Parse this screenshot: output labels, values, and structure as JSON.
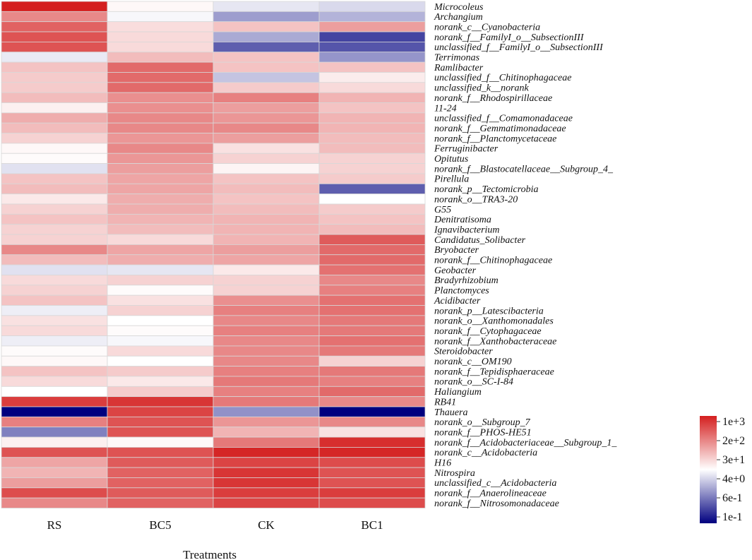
{
  "chart_data": {
    "type": "heatmap",
    "xlabel": "Treatments",
    "columns": [
      "RS",
      "BC5",
      "CK",
      "BC1"
    ],
    "rows": [
      {
        "label": "Microcoleus",
        "values": [
          3.0,
          0.1,
          -0.3,
          -0.45
        ]
      },
      {
        "label": "Archangium",
        "values": [
          1.6,
          -0.1,
          -1.15,
          -0.9
        ]
      },
      {
        "label": "norank_c__Cyanobacteria",
        "values": [
          2.1,
          0.45,
          0.8,
          1.3
        ]
      },
      {
        "label": "norank_f__FamilyI_o__SubsectionIII",
        "values": [
          2.3,
          0.5,
          -1.0,
          -2.2
        ]
      },
      {
        "label": "unclassified_f__FamilyI_o__SubsectionIII",
        "values": [
          2.3,
          0.5,
          -1.9,
          -2.0
        ]
      },
      {
        "label": "Terrimonas",
        "values": [
          -0.25,
          0.9,
          0.8,
          -1.25
        ]
      },
      {
        "label": "Ramlibacter",
        "values": [
          0.8,
          2.0,
          0.8,
          0.8
        ]
      },
      {
        "label": "unclassified_f__Chitinophagaceae",
        "values": [
          0.7,
          2.0,
          -0.7,
          0.25
        ]
      },
      {
        "label": "unclassified_k__norank",
        "values": [
          0.7,
          2.0,
          0.7,
          0.5
        ]
      },
      {
        "label": "norank_f__Rhodospirillaceae",
        "values": [
          0.9,
          1.5,
          1.7,
          1.0
        ]
      },
      {
        "label": "11-24",
        "values": [
          0.2,
          1.5,
          1.3,
          0.8
        ]
      },
      {
        "label": "unclassified_f__Comamonadaceae",
        "values": [
          1.1,
          1.6,
          1.4,
          1.0
        ]
      },
      {
        "label": "norank_f__Gemmatimonadaceae",
        "values": [
          0.9,
          1.6,
          1.6,
          1.0
        ]
      },
      {
        "label": "norank_f__Planctomycetaceae",
        "values": [
          0.6,
          1.4,
          1.3,
          0.9
        ]
      },
      {
        "label": "Ferruginibacter",
        "values": [
          0.1,
          1.6,
          0.4,
          0.9
        ]
      },
      {
        "label": "Opitutus",
        "values": [
          0.05,
          1.4,
          0.6,
          0.6
        ]
      },
      {
        "label": "norank_f__Blastocatellaceae__Subgroup_4_",
        "values": [
          -0.35,
          1.3,
          0.15,
          0.6
        ]
      },
      {
        "label": "Pirellula",
        "values": [
          0.8,
          1.2,
          0.8,
          0.7
        ]
      },
      {
        "label": "norank_p__Tectomicrobia",
        "values": [
          0.9,
          1.2,
          0.9,
          -1.9
        ]
      },
      {
        "label": "norank_o__TRA3-20",
        "values": [
          0.3,
          1.1,
          0.8,
          0.0
        ]
      },
      {
        "label": "G55",
        "values": [
          0.6,
          1.1,
          0.9,
          0.7
        ]
      },
      {
        "label": "Denitratisoma",
        "values": [
          0.8,
          1.0,
          1.0,
          0.8
        ]
      },
      {
        "label": "Ignavibacterium",
        "values": [
          0.6,
          0.9,
          1.0,
          0.9
        ]
      },
      {
        "label": "Candidatus_Solibacter",
        "values": [
          0.6,
          0.5,
          1.0,
          2.2
        ]
      },
      {
        "label": "Bryobacter",
        "values": [
          1.6,
          1.2,
          1.3,
          2.0
        ]
      },
      {
        "label": "norank_f__Chitinophagaceae",
        "values": [
          0.9,
          1.1,
          1.2,
          2.0
        ]
      },
      {
        "label": "Geobacter",
        "values": [
          -0.35,
          -0.3,
          0.3,
          1.9
        ]
      },
      {
        "label": "Bradyrhizobium",
        "values": [
          0.5,
          0.6,
          0.6,
          1.6
        ]
      },
      {
        "label": "Planctomyces",
        "values": [
          0.6,
          0.05,
          0.6,
          1.7
        ]
      },
      {
        "label": "Acidibacter",
        "values": [
          0.8,
          0.4,
          1.5,
          1.9
        ]
      },
      {
        "label": "norank_p__Latescibacteria",
        "values": [
          -0.2,
          0.6,
          1.7,
          1.9
        ]
      },
      {
        "label": "norank_o__Xanthomonadales",
        "values": [
          0.4,
          0.0,
          1.6,
          1.8
        ]
      },
      {
        "label": "norank_f__Cytophagaceae",
        "values": [
          0.5,
          0.05,
          1.7,
          1.8
        ]
      },
      {
        "label": "norank_f__Xanthobacteraceae",
        "values": [
          -0.2,
          -0.1,
          1.6,
          1.9
        ]
      },
      {
        "label": "Steroidobacter",
        "values": [
          0.05,
          0.5,
          1.6,
          1.8
        ]
      },
      {
        "label": "norank_c__OM190",
        "values": [
          0.1,
          0.0,
          1.6,
          0.6
        ]
      },
      {
        "label": "norank_f__Tepidisphaeraceae",
        "values": [
          0.8,
          0.7,
          1.7,
          1.8
        ]
      },
      {
        "label": "norank_o__SC-I-84",
        "values": [
          0.5,
          0.3,
          1.8,
          1.7
        ]
      },
      {
        "label": "Haliangium",
        "values": [
          0.0,
          0.7,
          1.7,
          2.0
        ]
      },
      {
        "label": "RB41",
        "values": [
          2.6,
          2.7,
          1.8,
          1.6
        ]
      },
      {
        "label": "Thauera",
        "values": [
          -3.0,
          2.5,
          -1.3,
          -3.0
        ]
      },
      {
        "label": "norank_o__Subgroup_7",
        "values": [
          1.7,
          2.3,
          1.4,
          1.6
        ]
      },
      {
        "label": "norank_f__PHOS-HE51",
        "values": [
          -1.5,
          2.3,
          1.0,
          0.4
        ]
      },
      {
        "label": "norank_f__Acidobacteriaceae__Subgroup_1_",
        "values": [
          0.2,
          0.1,
          1.8,
          2.8
        ]
      },
      {
        "label": "norank_c__Acidobacteria",
        "values": [
          2.3,
          2.3,
          2.9,
          2.9
        ]
      },
      {
        "label": "H16",
        "values": [
          1.2,
          2.2,
          2.5,
          2.4
        ]
      },
      {
        "label": "Nitrospira",
        "values": [
          1.0,
          2.1,
          2.7,
          2.3
        ]
      },
      {
        "label": "unclassified_c__Acidobacteria",
        "values": [
          1.3,
          2.1,
          2.7,
          2.3
        ]
      },
      {
        "label": "norank_f__Anaerolineaceae",
        "values": [
          2.4,
          2.2,
          2.6,
          2.6
        ]
      },
      {
        "label": "norank_f__Nitrosomonadaceae",
        "values": [
          1.6,
          2.1,
          2.5,
          2.4
        ]
      }
    ],
    "color_scale": {
      "min": -3,
      "mid": 0,
      "max": 3,
      "low_color": "#00007f",
      "mid_color": "#ffffff",
      "high_color": "#d41f1f",
      "legend_labels": [
        "1e+3",
        "2e+2",
        "3e+1",
        "4e+0",
        "6e-1",
        "1e-1"
      ]
    }
  }
}
